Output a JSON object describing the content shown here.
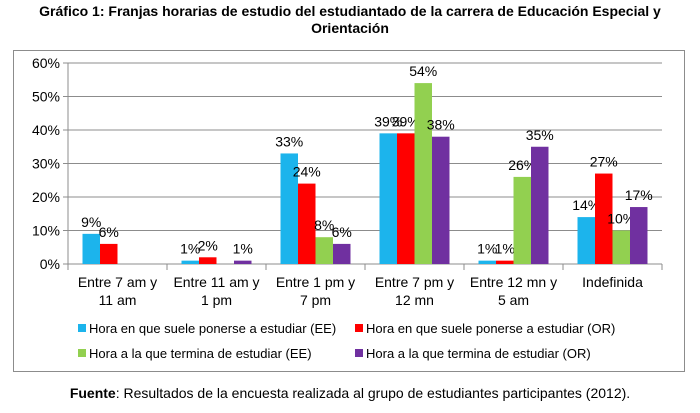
{
  "title_line1": "Gráfico 1: Franjas horarias de estudio del estudiantado de la carrera de Educación Especial y",
  "title_line2": "Orientación",
  "source_label": "Fuente",
  "source_text": ": Resultados de la encuesta realizada al grupo de estudiantes participantes (2012).",
  "chart_data": {
    "type": "bar",
    "title": "Gráfico 1: Franjas horarias de estudio del estudiantado de la carrera de Educación Especial y Orientación",
    "categories": [
      [
        "Entre 7 am y",
        "11 am"
      ],
      [
        "Entre 11 am y",
        "1 pm"
      ],
      [
        "Entre 1 pm y",
        "7 pm"
      ],
      [
        "Entre 7 pm y",
        "12 mn"
      ],
      [
        "Entre 12 mn y",
        "5 am"
      ],
      [
        "Indefinida"
      ]
    ],
    "ylim": [
      0,
      60
    ],
    "yticks": [
      "0%",
      "10%",
      "20%",
      "30%",
      "40%",
      "50%",
      "60%"
    ],
    "grid": true,
    "legend_position": "bottom",
    "series": [
      {
        "name": "Hora en que suele ponerse a estudiar (EE)",
        "color": "#1cb4ec",
        "values": [
          9,
          1,
          33,
          39,
          1,
          14
        ],
        "labels": [
          "9%",
          "1%",
          "33%",
          "39%",
          "1%",
          "14%"
        ]
      },
      {
        "name": "Hora en que suele ponerse a estudiar (OR)",
        "color": "#ff0000",
        "values": [
          6,
          2,
          24,
          39,
          1,
          27
        ],
        "labels": [
          "6%",
          "2%",
          "24%",
          "39%",
          "1%",
          "27%"
        ]
      },
      {
        "name": "Hora a la que termina de estudiar (EE)",
        "color": "#92d050",
        "values": [
          0,
          0,
          8,
          54,
          26,
          10
        ],
        "labels": [
          "",
          "",
          "8%",
          "54%",
          "26%",
          "10%"
        ]
      },
      {
        "name": "Hora a la que termina de estudiar (OR)",
        "color": "#7030a0",
        "values": [
          0,
          1,
          6,
          38,
          35,
          17
        ],
        "labels": [
          "",
          "1%",
          "6%",
          "38%",
          "35%",
          "17%"
        ]
      }
    ]
  }
}
